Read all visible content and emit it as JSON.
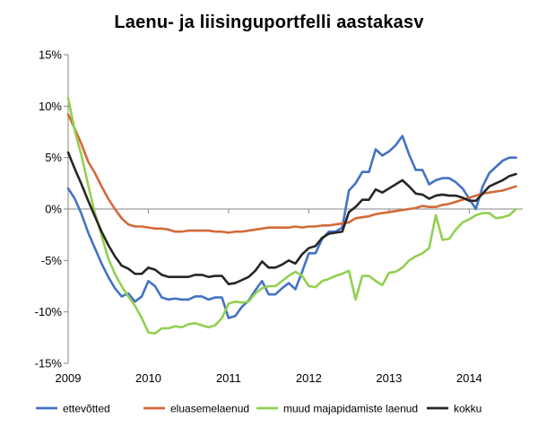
{
  "chart_data": {
    "type": "line",
    "title": "Laenu- ja liisinguportfelli aastakasv",
    "xlabel": "",
    "ylabel": "",
    "xlim": [
      2009,
      2014.667
    ],
    "ylim": [
      -15,
      15
    ],
    "y_ticks": [
      -15,
      -10,
      -5,
      0,
      5,
      10,
      15
    ],
    "y_tick_labels": [
      "-15%",
      "-10%",
      "-5%",
      "0%",
      "5%",
      "10%",
      "15%"
    ],
    "x_ticks": [
      2009,
      2010,
      2011,
      2012,
      2013,
      2014
    ],
    "x_tick_labels": [
      "2009",
      "2010",
      "2011",
      "2012",
      "2013",
      "2014"
    ],
    "grid": false,
    "legend_position": "bottom",
    "x": [
      2009.0,
      2009.083,
      2009.167,
      2009.25,
      2009.333,
      2009.417,
      2009.5,
      2009.583,
      2009.667,
      2009.75,
      2009.833,
      2009.917,
      2010.0,
      2010.083,
      2010.167,
      2010.25,
      2010.333,
      2010.417,
      2010.5,
      2010.583,
      2010.667,
      2010.75,
      2010.833,
      2010.917,
      2011.0,
      2011.083,
      2011.167,
      2011.25,
      2011.333,
      2011.417,
      2011.5,
      2011.583,
      2011.667,
      2011.75,
      2011.833,
      2011.917,
      2012.0,
      2012.083,
      2012.167,
      2012.25,
      2012.333,
      2012.417,
      2012.5,
      2012.583,
      2012.667,
      2012.75,
      2012.833,
      2012.917,
      2013.0,
      2013.083,
      2013.167,
      2013.25,
      2013.333,
      2013.417,
      2013.5,
      2013.583,
      2013.667,
      2013.75,
      2013.833,
      2013.917,
      2014.0,
      2014.083,
      2014.167,
      2014.25,
      2014.333,
      2014.417,
      2014.5,
      2014.583
    ],
    "series": [
      {
        "name": "ettevõtted",
        "color": "#4472C4",
        "values": [
          2.0,
          1.0,
          -0.5,
          -2.3,
          -3.8,
          -5.3,
          -6.6,
          -7.7,
          -8.5,
          -8.2,
          -9.0,
          -8.5,
          -7.0,
          -7.5,
          -8.6,
          -8.8,
          -8.7,
          -8.8,
          -8.8,
          -8.5,
          -8.5,
          -8.8,
          -8.6,
          -8.6,
          -10.6,
          -10.4,
          -9.5,
          -8.9,
          -7.9,
          -7.0,
          -8.3,
          -8.3,
          -7.7,
          -7.2,
          -7.8,
          -6.1,
          -4.3,
          -4.3,
          -2.9,
          -2.2,
          -2.2,
          -1.8,
          1.8,
          2.5,
          3.6,
          3.6,
          5.8,
          5.2,
          5.6,
          6.2,
          7.1,
          5.3,
          3.8,
          3.8,
          2.4,
          2.8,
          3.0,
          3.0,
          2.6,
          2.0,
          1.0,
          0.0,
          2.2,
          3.5,
          4.1,
          4.7,
          5.0,
          5.0
        ]
      },
      {
        "name": "eluasemelaenud",
        "color": "#D46A38",
        "values": [
          9.2,
          7.8,
          6.3,
          4.6,
          3.5,
          2.2,
          1.0,
          0.0,
          -0.9,
          -1.5,
          -1.7,
          -1.7,
          -1.8,
          -1.9,
          -1.9,
          -2.0,
          -2.2,
          -2.2,
          -2.1,
          -2.1,
          -2.1,
          -2.1,
          -2.2,
          -2.2,
          -2.3,
          -2.2,
          -2.2,
          -2.1,
          -2.0,
          -1.9,
          -1.8,
          -1.8,
          -1.8,
          -1.8,
          -1.7,
          -1.8,
          -1.7,
          -1.7,
          -1.6,
          -1.6,
          -1.5,
          -1.4,
          -1.3,
          -0.9,
          -0.8,
          -0.7,
          -0.5,
          -0.4,
          -0.3,
          -0.2,
          -0.1,
          0.0,
          0.1,
          0.3,
          0.2,
          0.2,
          0.4,
          0.5,
          0.7,
          0.9,
          1.1,
          1.3,
          1.5,
          1.6,
          1.7,
          1.8,
          2.0,
          2.2
        ]
      },
      {
        "name": "muud majapidamiste  laenud",
        "color": "#92D050",
        "values": [
          10.8,
          7.6,
          5.2,
          2.3,
          -0.4,
          -2.6,
          -4.8,
          -6.3,
          -7.5,
          -8.5,
          -9.4,
          -10.6,
          -12.0,
          -12.1,
          -11.6,
          -11.6,
          -11.4,
          -11.5,
          -11.2,
          -11.1,
          -11.3,
          -11.5,
          -11.3,
          -10.6,
          -9.2,
          -9.0,
          -9.1,
          -9.0,
          -8.2,
          -7.7,
          -7.5,
          -7.5,
          -7.0,
          -6.5,
          -6.1,
          -6.5,
          -7.5,
          -7.6,
          -7.0,
          -6.8,
          -6.5,
          -6.3,
          -6.0,
          -8.8,
          -6.5,
          -6.5,
          -7.0,
          -7.4,
          -6.2,
          -6.1,
          -5.7,
          -5.0,
          -4.6,
          -4.3,
          -3.8,
          -0.6,
          -3.0,
          -2.9,
          -2.0,
          -1.3,
          -1.0,
          -0.6,
          -0.4,
          -0.4,
          -0.9,
          -0.8,
          -0.6,
          0.0
        ]
      },
      {
        "name": "kokku",
        "color": "#262626",
        "values": [
          5.5,
          3.9,
          2.4,
          0.8,
          -0.7,
          -2.2,
          -3.5,
          -4.6,
          -5.5,
          -5.8,
          -6.3,
          -6.3,
          -5.7,
          -5.9,
          -6.4,
          -6.6,
          -6.6,
          -6.6,
          -6.6,
          -6.4,
          -6.4,
          -6.6,
          -6.5,
          -6.5,
          -7.3,
          -7.2,
          -6.9,
          -6.6,
          -6.0,
          -5.1,
          -5.7,
          -5.7,
          -5.4,
          -5.0,
          -5.3,
          -4.4,
          -3.8,
          -3.6,
          -2.8,
          -2.4,
          -2.3,
          -2.2,
          -0.3,
          0.2,
          0.9,
          0.9,
          1.9,
          1.6,
          2.0,
          2.4,
          2.8,
          2.2,
          1.5,
          1.4,
          1.0,
          1.3,
          1.4,
          1.3,
          1.3,
          1.1,
          0.8,
          0.8,
          1.5,
          2.2,
          2.5,
          2.8,
          3.2,
          3.4
        ]
      }
    ]
  }
}
